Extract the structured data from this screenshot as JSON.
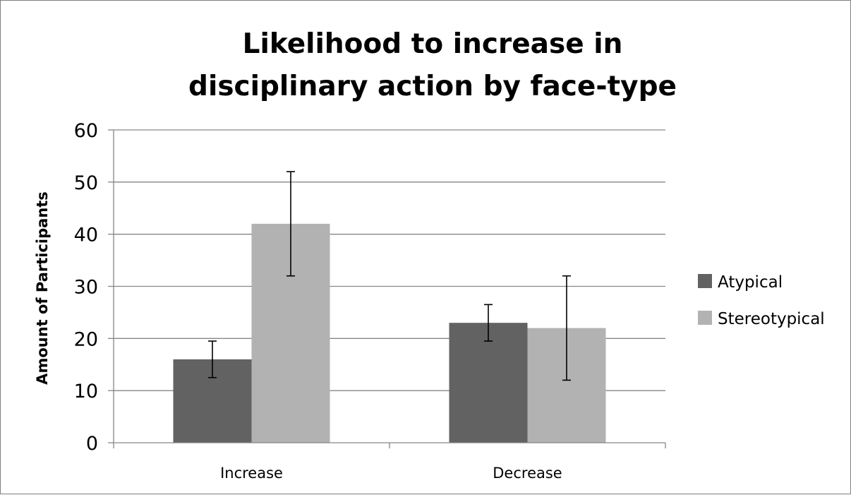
{
  "chart_data": {
    "type": "bar",
    "title_lines": [
      "Likelihood to increase in",
      "disciplinary action by face-type"
    ],
    "xlabel": "",
    "ylabel": "Amount of Participants",
    "ylim": [
      0,
      60
    ],
    "yticks": [
      0,
      10,
      20,
      30,
      40,
      50,
      60
    ],
    "grid": true,
    "legend_position": "right",
    "categories": [
      "Increase",
      "Decrease"
    ],
    "series": [
      {
        "name": "Atypical",
        "color": "#626262",
        "values": [
          16,
          23
        ],
        "error_low": [
          12.5,
          19.5
        ],
        "error_high": [
          19.5,
          26.5
        ]
      },
      {
        "name": "Stereotypical",
        "color": "#b2b2b2",
        "values": [
          42,
          22
        ],
        "error_low": [
          32,
          12
        ],
        "error_high": [
          52,
          32
        ]
      }
    ]
  }
}
